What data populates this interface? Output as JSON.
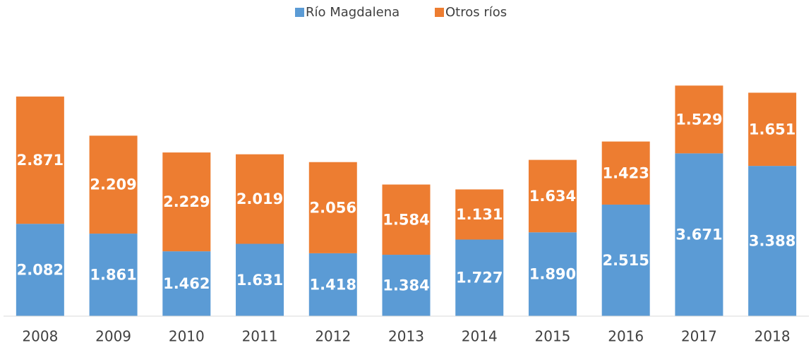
{
  "chart_data": {
    "type": "stacked_bar",
    "categories": [
      "2008",
      "2009",
      "2010",
      "2011",
      "2012",
      "2013",
      "2014",
      "2015",
      "2016",
      "2017",
      "2018"
    ],
    "series": [
      {
        "name": "Río Magdalena",
        "color": "#5b9bd5",
        "values": [
          2082,
          1861,
          1462,
          1631,
          1418,
          1384,
          1727,
          1890,
          2515,
          3671,
          3388
        ],
        "value_labels": [
          "2.082",
          "1.861",
          "1.462",
          "1.631",
          "1.418",
          "1.384",
          "1.727",
          "1.890",
          "2.515",
          "3.671",
          "3.388"
        ]
      },
      {
        "name": "Otros ríos",
        "color": "#ed7d31",
        "values": [
          2871,
          2209,
          2229,
          2019,
          2056,
          1584,
          1131,
          1634,
          1423,
          1529,
          1651
        ],
        "value_labels": [
          "2.871",
          "2.209",
          "2.229",
          "2.019",
          "2.056",
          "1.584",
          "1.131",
          "1.634",
          "1.423",
          "1.529",
          "1.651"
        ]
      }
    ],
    "ylim": [
      0,
      6000
    ],
    "legend": "top"
  }
}
